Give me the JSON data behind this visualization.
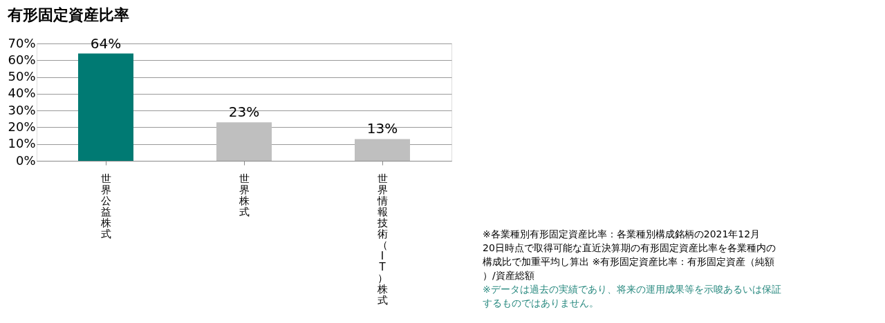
{
  "chart_data": {
    "type": "bar",
    "title": "有形固定資産比率",
    "categories": [
      "世界公益株式",
      "世界株式",
      "世界情報技術（IT）株式"
    ],
    "values": [
      64,
      23,
      13
    ],
    "colors": [
      "#007a73",
      "#bfbfbf",
      "#bfbfbf"
    ],
    "value_labels": [
      "64%",
      "23%",
      "13%"
    ],
    "ylim": [
      0,
      70
    ],
    "yticks": [
      {
        "value": 0,
        "label": "0%"
      },
      {
        "value": 10,
        "label": "10%"
      },
      {
        "value": 20,
        "label": "20%"
      },
      {
        "value": 30,
        "label": "30%"
      },
      {
        "value": 40,
        "label": "40%"
      },
      {
        "value": 50,
        "label": "50%"
      },
      {
        "value": 60,
        "label": "60%"
      },
      {
        "value": 70,
        "label": "70%"
      }
    ],
    "grid": "y",
    "annotations": [
      "※各業種別有形固定資産比率：各業種別構成銘柄の2021年12月20日時点で取得可能な直近決算期の有形固定資産比率を各業種内の構成比で加重平均し算出 ※有形固定資産比率：有形固定資産（純額）/資産総額",
      "※データは過去の実績であり、将来の運用成果等を示唆あるいは保証するものではありません。"
    ]
  }
}
